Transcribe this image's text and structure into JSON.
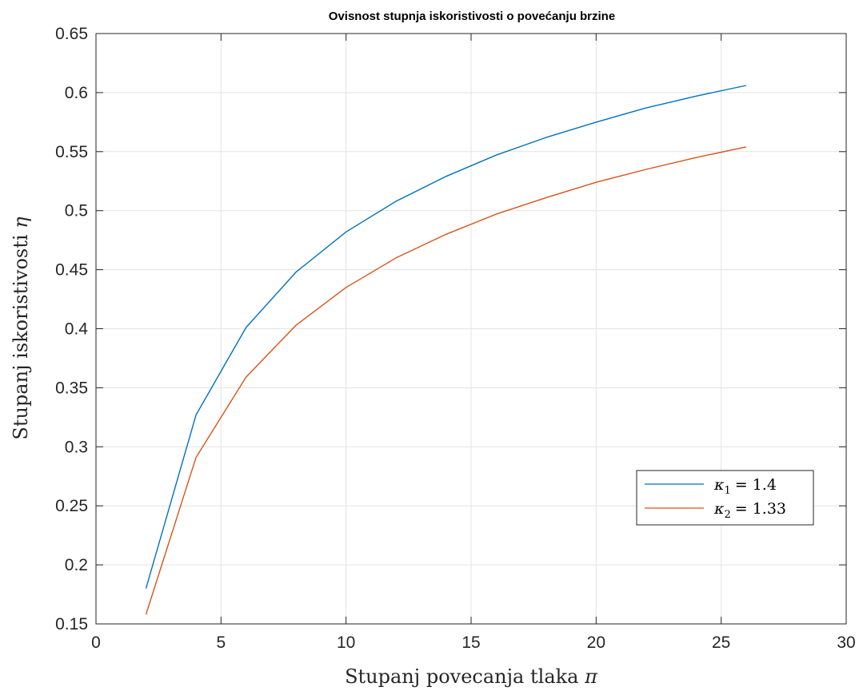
{
  "chart_data": {
    "type": "line",
    "title": "Ovisnost stupnja iskoristivosti o povećanju brzine",
    "xlabel": {
      "text": "Stupanj povecanja tlaka",
      "symbol": "π"
    },
    "ylabel": {
      "text": "Stupanj iskoristivosti",
      "symbol": "η"
    },
    "xlim": [
      0,
      30
    ],
    "ylim": [
      0.15,
      0.65
    ],
    "xticks": [
      0,
      5,
      10,
      15,
      20,
      25,
      30
    ],
    "yticks": [
      0.15,
      0.2,
      0.25,
      0.3,
      0.35,
      0.4,
      0.45,
      0.5,
      0.55,
      0.6,
      0.65
    ],
    "xtick_labels": [
      "0",
      "5",
      "10",
      "15",
      "20",
      "25",
      "30"
    ],
    "ytick_labels": [
      "0.15",
      "0.2",
      "0.25",
      "0.3",
      "0.35",
      "0.4",
      "0.45",
      "0.5",
      "0.55",
      "0.6",
      "0.65"
    ],
    "grid": true,
    "legend_position": "lower-right",
    "x": [
      2,
      4,
      6,
      8,
      10,
      12,
      14,
      16,
      18,
      20,
      22,
      24,
      26
    ],
    "series": [
      {
        "legend": {
          "symbol": "κ",
          "subscript": "1",
          "value": "= 1.4"
        },
        "color": "#0072BD",
        "values": [
          0.18,
          0.327,
          0.401,
          0.448,
          0.482,
          0.508,
          0.529,
          0.547,
          0.562,
          0.575,
          0.587,
          0.597,
          0.606
        ]
      },
      {
        "legend": {
          "symbol": "κ",
          "subscript": "2",
          "value": "= 1.33"
        },
        "color": "#D95319",
        "values": [
          0.158,
          0.291,
          0.359,
          0.403,
          0.435,
          0.46,
          0.48,
          0.497,
          0.511,
          0.524,
          0.535,
          0.545,
          0.554
        ]
      }
    ]
  }
}
